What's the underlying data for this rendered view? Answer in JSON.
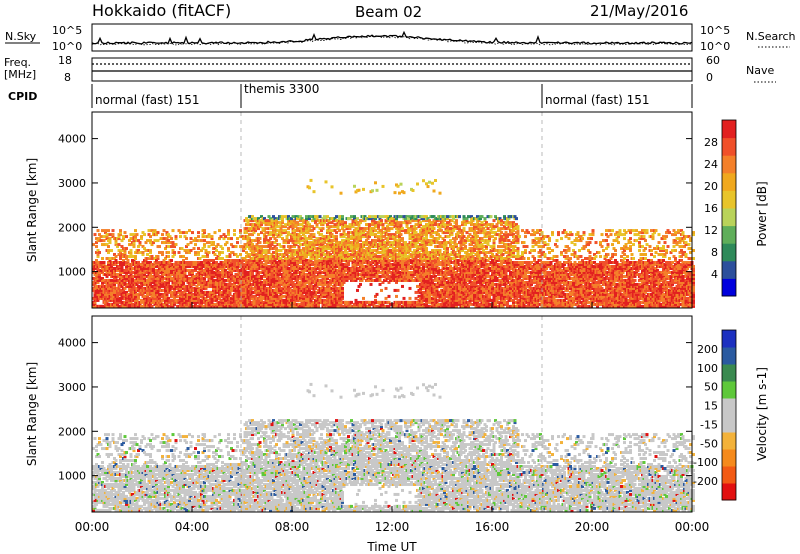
{
  "header": {
    "station": "Hokkaido (fitACF)",
    "beam": "Beam 02",
    "date": "21/May/2016"
  },
  "top_panels": {
    "nsky_label": "N.Sky",
    "nsky_ticks": [
      "10^5",
      "10^0"
    ],
    "nsearch_label": "N.Search",
    "nsearch_ticks": [
      "10^5",
      "10^0"
    ],
    "freq_label": "Freq.",
    "freq_unit": "[MHz]",
    "freq_ticks": [
      "18",
      "8"
    ],
    "nave_label": "Nave",
    "nave_ticks": [
      "60",
      "0"
    ],
    "cpid_label": "CPID",
    "modes": [
      {
        "name": "normal (fast) 151",
        "start": 0,
        "end": 6
      },
      {
        "name": "themis 3300",
        "start": 6,
        "end": 18
      },
      {
        "name": "normal (fast) 151",
        "start": 18,
        "end": 24
      }
    ]
  },
  "chart_data": [
    {
      "type": "heatmap",
      "title": "",
      "quantity": "Power",
      "xlabel": "",
      "ylabel": "Slant Range [km]",
      "xlim": [
        0,
        24
      ],
      "ylim": [
        180,
        4600
      ],
      "yticks": [
        1000,
        2000,
        3000,
        4000
      ],
      "colorbar": {
        "label": "Power [dB]",
        "ticks": [
          "28",
          "24",
          "20",
          "16",
          "12",
          "8",
          "4"
        ],
        "colors": [
          "#0000dd",
          "#2c4f9c",
          "#2e8a5a",
          "#5fae5a",
          "#b9d35a",
          "#e8c42a",
          "#f0a81e",
          "#f4802a",
          "#f0502a",
          "#e22020"
        ]
      }
    },
    {
      "type": "heatmap",
      "title": "",
      "quantity": "Velocity",
      "xlabel": "Time UT",
      "ylabel": "Slant Range [km]",
      "xlim": [
        0,
        24
      ],
      "ylim": [
        180,
        4600
      ],
      "xticks": [
        "00:00",
        "04:00",
        "08:00",
        "12:00",
        "16:00",
        "20:00",
        "00:00"
      ],
      "yticks": [
        1000,
        2000,
        3000,
        4000
      ],
      "colorbar": {
        "label": "Velocity [m s-1]",
        "ticks": [
          "200",
          "100",
          "50",
          "15",
          "-15",
          "-50",
          "-100",
          "-200"
        ],
        "colors": [
          "#e21010",
          "#f25a14",
          "#f58a1c",
          "#f3b23a",
          "#c8c8c8",
          "#c8c8c8",
          "#5ec83a",
          "#3a8a50",
          "#2a5aa0",
          "#1c30c0"
        ]
      }
    }
  ]
}
